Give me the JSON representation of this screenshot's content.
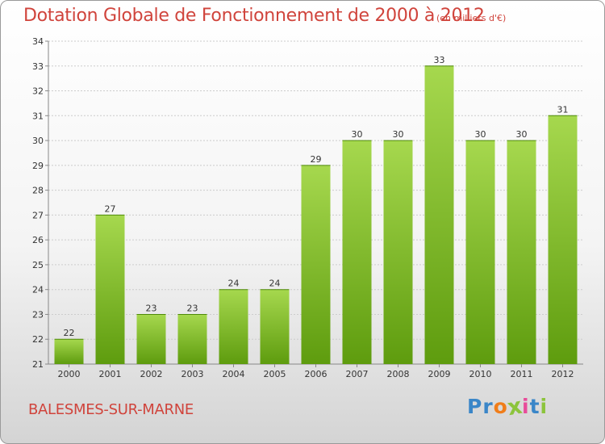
{
  "title": "Dotation Globale de Fonctionnement de 2000 à 2012",
  "unit": "(en milliers d'€)",
  "commune": "BALESMES-SUR-MARNE",
  "logo": {
    "text": "Proxiti",
    "letters": [
      {
        "char": "P",
        "color": "#3a86c8"
      },
      {
        "char": "r",
        "color": "#3a86c8"
      },
      {
        "char": "o",
        "color": "#f07d1a"
      },
      {
        "char": "x",
        "color": "#8cc43c"
      },
      {
        "char": "i",
        "color": "#e84c9a"
      },
      {
        "char": "t",
        "color": "#3a86c8"
      },
      {
        "char": "i",
        "color": "#8cc43c"
      }
    ]
  },
  "colors": {
    "title": "#d0443c",
    "bar_light": "#a6d84e",
    "bar_dark": "#5e9c0e",
    "grid": "#cccccc",
    "axis": "#888888"
  },
  "chart_data": {
    "type": "bar",
    "title": "Dotation Globale de Fonctionnement de 2000 à 2012",
    "categories": [
      "2000",
      "2001",
      "2002",
      "2003",
      "2004",
      "2005",
      "2006",
      "2007",
      "2008",
      "2009",
      "2010",
      "2011",
      "2012"
    ],
    "values": [
      22,
      27,
      23,
      23,
      24,
      24,
      29,
      30,
      30,
      33,
      30,
      30,
      31
    ],
    "ylim": [
      21,
      34
    ],
    "yticks": [
      21,
      22,
      23,
      24,
      25,
      26,
      27,
      28,
      29,
      30,
      31,
      32,
      33,
      34
    ],
    "grid": true,
    "legend": "none"
  }
}
